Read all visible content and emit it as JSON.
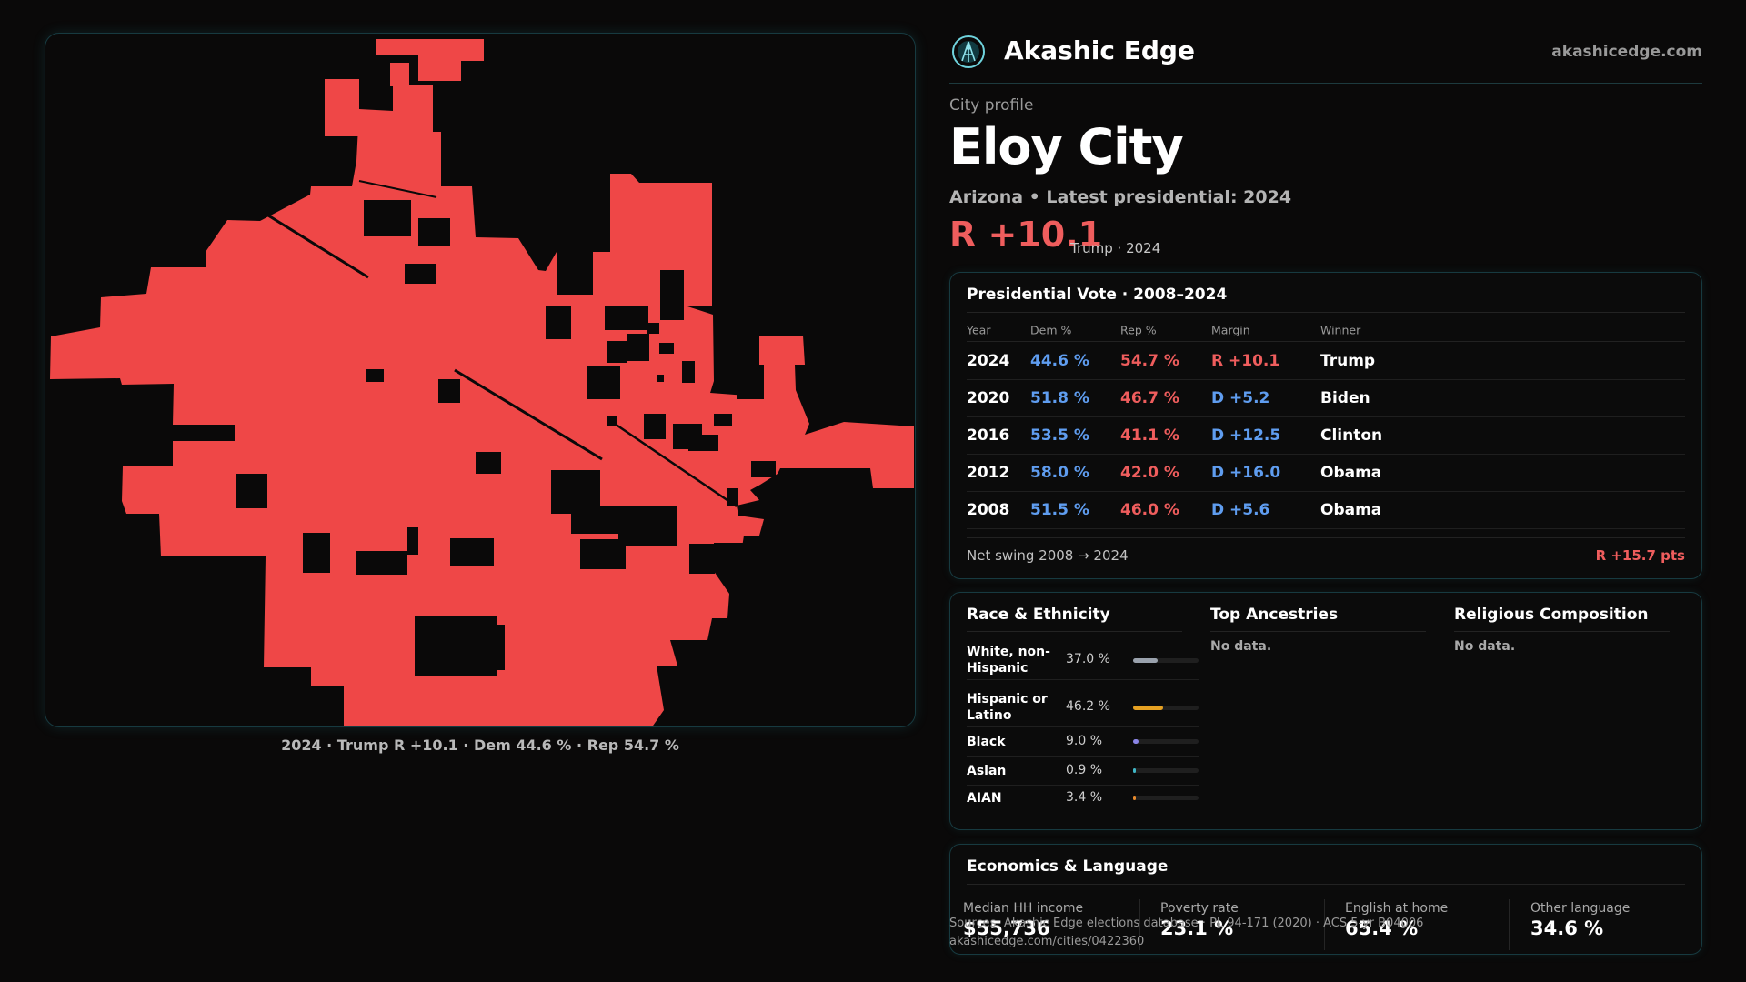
{
  "map": {
    "fill_color": "#ef4747",
    "caption": "2024 · Trump R +10.1 · Dem 44.6 % · Rep 54.7 %"
  },
  "brand": {
    "name": "Akashic Edge",
    "url": "akashicedge.com",
    "logo_icon": "akashic-glyph-icon"
  },
  "profile": {
    "eyebrow": "City profile",
    "city": "Eloy City",
    "subtitle": "Arizona • Latest presidential: 2024",
    "margin": "R +10.1",
    "margin_note": "Trump · 2024"
  },
  "vote_table": {
    "title": "Presidential Vote · 2008–2024",
    "columns": [
      "Year",
      "Dem %",
      "Rep %",
      "Margin",
      "Winner"
    ],
    "rows": [
      {
        "year": "2024",
        "dem": "44.6 %",
        "rep": "54.7 %",
        "margin": "R +10.1",
        "margin_party": "rep",
        "winner": "Trump"
      },
      {
        "year": "2020",
        "dem": "51.8 %",
        "rep": "46.7 %",
        "margin": "D +5.2",
        "margin_party": "dem",
        "winner": "Biden"
      },
      {
        "year": "2016",
        "dem": "53.5 %",
        "rep": "41.1 %",
        "margin": "D +12.5",
        "margin_party": "dem",
        "winner": "Clinton"
      },
      {
        "year": "2012",
        "dem": "58.0 %",
        "rep": "42.0 %",
        "margin": "D +16.0",
        "margin_party": "dem",
        "winner": "Obama"
      },
      {
        "year": "2008",
        "dem": "51.5 %",
        "rep": "46.0 %",
        "margin": "D +5.6",
        "margin_party": "dem",
        "winner": "Obama"
      }
    ],
    "swing_label": "Net swing 2008 → 2024",
    "swing_value": "R +15.7 pts"
  },
  "demographics": {
    "race_title": "Race & Ethnicity",
    "race": [
      {
        "label": "White, non-Hispanic",
        "pct": "37.0 %",
        "share": 0.37,
        "color": "#9aa2ad"
      },
      {
        "label": "Hispanic or Latino",
        "pct": "46.2 %",
        "share": 0.462,
        "color": "#e6a122"
      },
      {
        "label": "Black",
        "pct": "9.0 %",
        "share": 0.09,
        "color": "#8a84e6"
      },
      {
        "label": "Asian",
        "pct": "0.9 %",
        "share": 0.009,
        "color": "#3fb6c6"
      },
      {
        "label": "AIAN",
        "pct": "3.4 %",
        "share": 0.034,
        "color": "#e88a2c"
      }
    ],
    "ancestries_title": "Top Ancestries",
    "ancestries_empty": "No data.",
    "religion_title": "Religious Composition",
    "religion_empty": "No data."
  },
  "economics": {
    "title": "Economics & Language",
    "items": [
      {
        "label": "Median HH income",
        "value": "$55,736"
      },
      {
        "label": "Poverty rate",
        "value": "23.1 %"
      },
      {
        "label": "English at home",
        "value": "65.4 %"
      },
      {
        "label": "Other language",
        "value": "34.6 %"
      }
    ]
  },
  "footer": {
    "source": "Sources: Akashic Edge elections database · PL 94-171 (2020) · ACS 5-yr B04006",
    "link": "akashicedge.com/cities/0422360"
  }
}
